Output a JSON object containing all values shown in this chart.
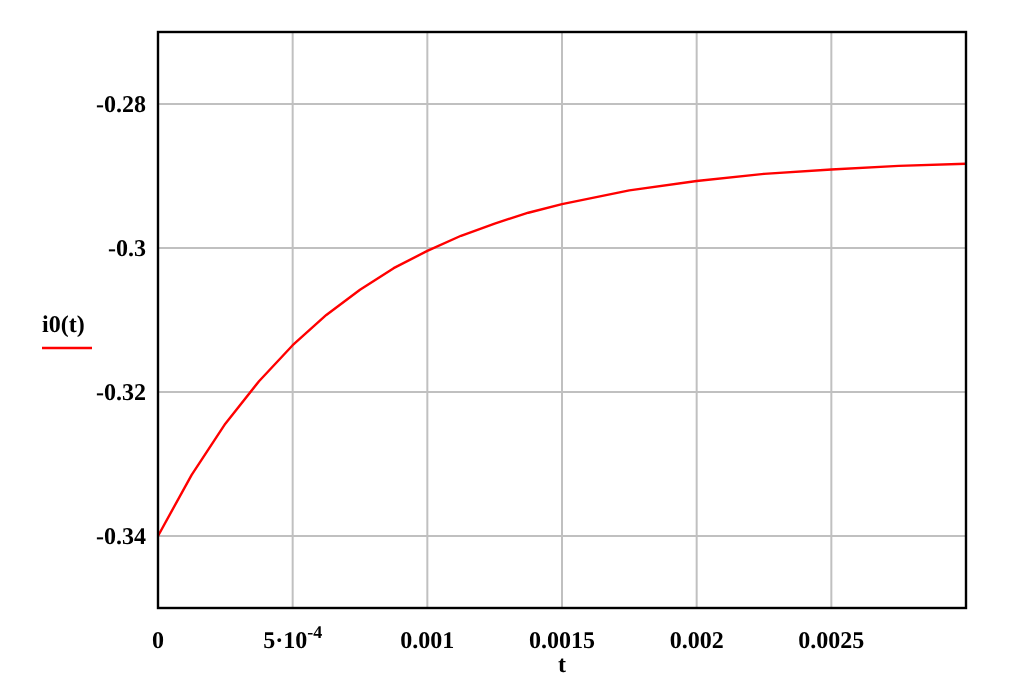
{
  "chart_data": {
    "type": "line",
    "xlabel": "t",
    "ylabel": "i0(t)",
    "x": [
      0,
      0.000125,
      0.00025,
      0.000375,
      0.0005,
      0.000625,
      0.00075,
      0.000875,
      0.001,
      0.001125,
      0.00125,
      0.001375,
      0.0015,
      0.00175,
      0.002,
      0.00225,
      0.0025,
      0.00275,
      0.003
    ],
    "series": [
      {
        "color": "#ff0000",
        "values": [
          -0.34,
          -0.3315,
          -0.3244,
          -0.3185,
          -0.3135,
          -0.3093,
          -0.3058,
          -0.3028,
          -0.3004,
          -0.2983,
          -0.2966,
          -0.2951,
          -0.2939,
          -0.292,
          -0.2907,
          -0.2897,
          -0.2891,
          -0.2886,
          -0.2883
        ]
      }
    ],
    "xlim": [
      0,
      0.003
    ],
    "ylim": [
      -0.35,
      -0.27
    ],
    "xticks": [
      0,
      {
        "value": 0.0005,
        "label": "5·10$^{-4}$"
      },
      0.001,
      0.0015,
      0.002,
      0.0025
    ],
    "yticks": [
      -0.34,
      -0.32,
      -0.3,
      -0.28
    ],
    "grid": true
  }
}
